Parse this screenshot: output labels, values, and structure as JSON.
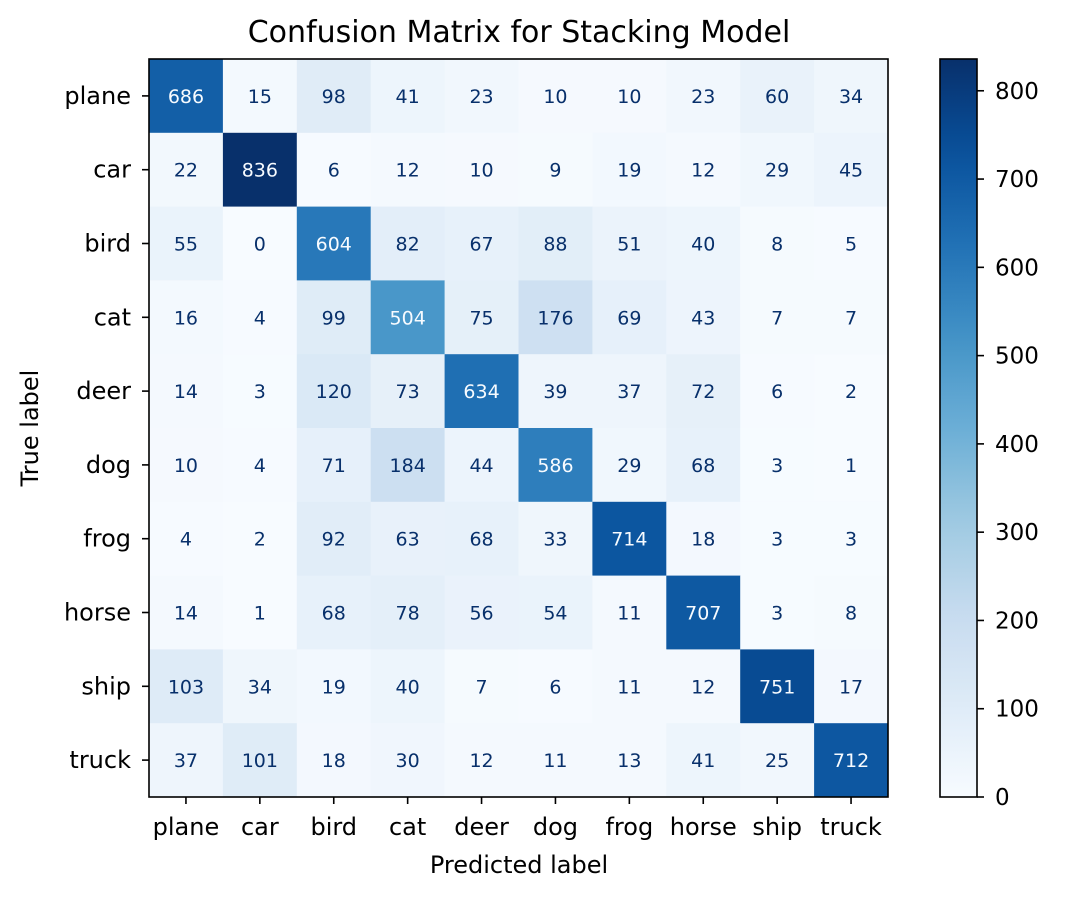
{
  "chart_data": {
    "type": "heatmap",
    "title": "Confusion Matrix for Stacking Model",
    "xlabel": "Predicted label",
    "ylabel": "True label",
    "x_categories": [
      "plane",
      "car",
      "bird",
      "cat",
      "deer",
      "dog",
      "frog",
      "horse",
      "ship",
      "truck"
    ],
    "y_categories": [
      "plane",
      "car",
      "bird",
      "cat",
      "deer",
      "dog",
      "frog",
      "horse",
      "ship",
      "truck"
    ],
    "matrix": [
      [
        686,
        15,
        98,
        41,
        23,
        10,
        10,
        23,
        60,
        34
      ],
      [
        22,
        836,
        6,
        12,
        10,
        9,
        19,
        12,
        29,
        45
      ],
      [
        55,
        0,
        604,
        82,
        67,
        88,
        51,
        40,
        8,
        5
      ],
      [
        16,
        4,
        99,
        504,
        75,
        176,
        69,
        43,
        7,
        7
      ],
      [
        14,
        3,
        120,
        73,
        634,
        39,
        37,
        72,
        6,
        2
      ],
      [
        10,
        4,
        71,
        184,
        44,
        586,
        29,
        68,
        3,
        1
      ],
      [
        4,
        2,
        92,
        63,
        68,
        33,
        714,
        18,
        3,
        3
      ],
      [
        14,
        1,
        68,
        78,
        56,
        54,
        11,
        707,
        3,
        8
      ],
      [
        103,
        34,
        19,
        40,
        7,
        6,
        11,
        12,
        751,
        17
      ],
      [
        37,
        101,
        18,
        30,
        12,
        11,
        13,
        41,
        25,
        712
      ]
    ],
    "colormap": "Blues",
    "colorbar": {
      "range": [
        0,
        836
      ],
      "ticks": [
        0,
        100,
        200,
        300,
        400,
        500,
        600,
        700,
        800
      ]
    },
    "grid": false
  }
}
